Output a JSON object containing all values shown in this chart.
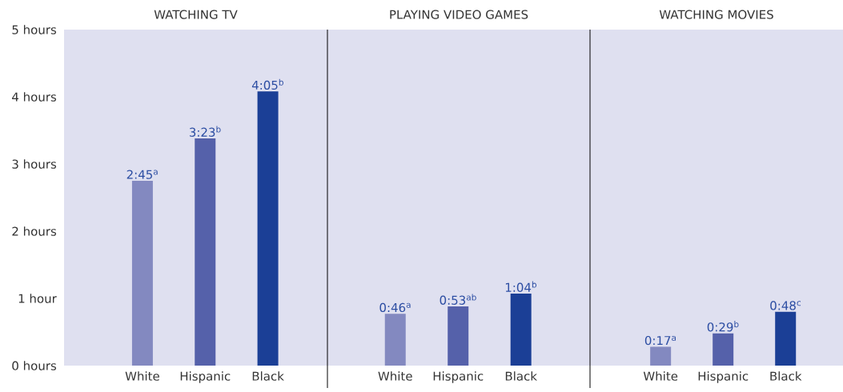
{
  "chart_data": [
    {
      "type": "bar",
      "title": "WATCHING TV",
      "categories": [
        "White",
        "Hispanic",
        "Black"
      ],
      "values": [
        2.75,
        3.38,
        4.08
      ],
      "colors": [
        "#8389c0",
        "#5561aa",
        "#1b3f96"
      ],
      "value_labels": [
        "2:45$^{a}$",
        "3:23$^{b}$",
        "4:05$^{b}$"
      ],
      "ylim": [
        0,
        5
      ],
      "yticks": [
        {
          "value": 0,
          "label": "0 hours"
        },
        {
          "value": 1,
          "label": "1 hour"
        },
        {
          "value": 2,
          "label": "2 hours"
        },
        {
          "value": 3,
          "label": "3 hours"
        },
        {
          "value": 4,
          "label": "4 hours"
        },
        {
          "value": 5,
          "label": "5 hours"
        }
      ]
    },
    {
      "type": "bar",
      "title": "PLAYING VIDEO GAMES",
      "categories": [
        "White",
        "Hispanic",
        "Black"
      ],
      "values": [
        0.77,
        0.88,
        1.07
      ],
      "colors": [
        "#8389c0",
        "#5561aa",
        "#1b3f96"
      ],
      "value_labels": [
        "0:46$^{a}$",
        "0:53$^{ab}$",
        "1:04$^{b}$"
      ],
      "ylim": [
        0,
        5
      ],
      "tick_labels": "x"
    },
    {
      "type": "bar",
      "title": "WATCHING MOVIES",
      "categories": [
        "White",
        "Hispanic",
        "Black"
      ],
      "values": [
        0.28,
        0.48,
        0.8
      ],
      "colors": [
        "#8389c0",
        "#5561aa",
        "#1b3f96"
      ],
      "value_labels": [
        "0:17$^{a}$",
        "0:29$^{b}$",
        "0:48$^{c}$"
      ],
      "ylim": [
        0,
        5
      ],
      "tick_labels": "x"
    }
  ]
}
